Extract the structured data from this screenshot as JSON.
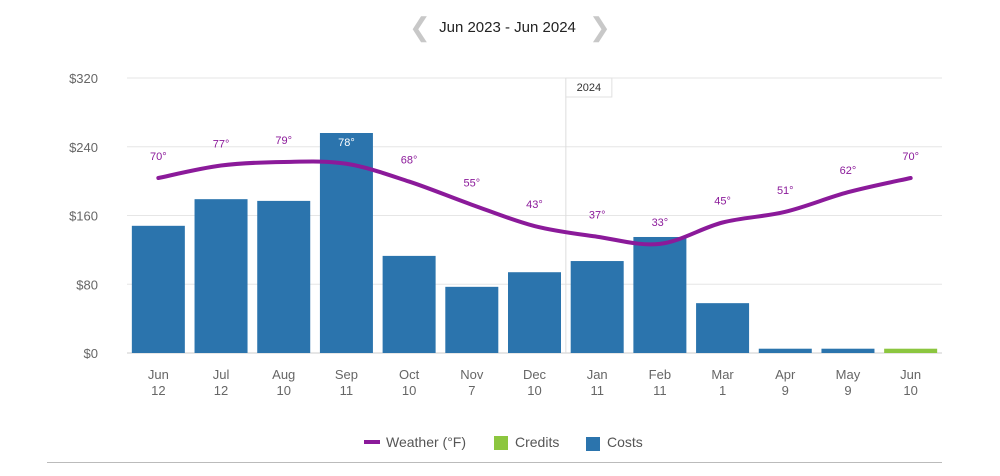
{
  "header": {
    "range_label": "Jun 2023 - Jun 2024",
    "prev_icon": "chevron-left-icon",
    "next_icon": "chevron-right-icon"
  },
  "chart_data": {
    "type": "bar",
    "categories": [
      "Jun",
      "Jul",
      "Aug",
      "Sep",
      "Oct",
      "Nov",
      "Dec",
      "Jan",
      "Feb",
      "Mar",
      "Apr",
      "May",
      "Jun"
    ],
    "sublabels": [
      "12",
      "12",
      "10",
      "11",
      "10",
      "7",
      "10",
      "11",
      "11",
      "1",
      "9",
      "9",
      "10"
    ],
    "ylim": [
      0,
      320
    ],
    "yticks": [
      "$0",
      "$80",
      "$160",
      "$240",
      "$320"
    ],
    "ytick_values": [
      0,
      80,
      160,
      240,
      320
    ],
    "grid": true,
    "year_marker": {
      "label": "2024",
      "before_index": 7
    },
    "series": [
      {
        "name": "Costs",
        "type": "bar",
        "color": "#2b74ad",
        "values": [
          148,
          179,
          177,
          256,
          113,
          77,
          94,
          107,
          135,
          58,
          5,
          5,
          null
        ]
      },
      {
        "name": "Credits",
        "type": "bar",
        "color": "#8cc63f",
        "values": [
          null,
          null,
          null,
          null,
          null,
          null,
          null,
          null,
          null,
          null,
          null,
          null,
          5
        ]
      },
      {
        "name": "Weather (°F)",
        "type": "line",
        "color": "#8b1a9a",
        "values": [
          70,
          77,
          79,
          78,
          68,
          55,
          43,
          37,
          33,
          45,
          51,
          62,
          70
        ],
        "labels": [
          "70°",
          "77°",
          "79°",
          "78°",
          "68°",
          "55°",
          "43°",
          "37°",
          "33°",
          "45°",
          "51°",
          "62°",
          "70°"
        ]
      }
    ],
    "legend": {
      "placement": "bottom",
      "items": [
        "Weather (°F)",
        "Credits",
        "Costs"
      ]
    }
  }
}
